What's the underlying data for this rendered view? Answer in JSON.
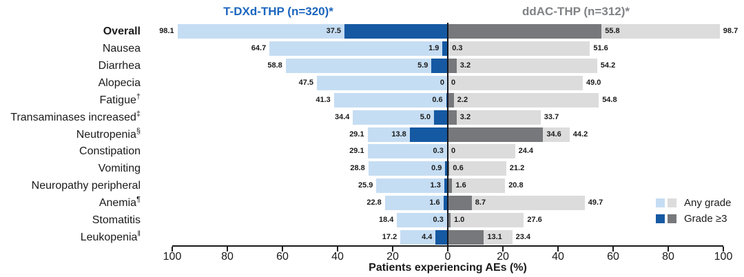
{
  "chart_data": {
    "type": "bar",
    "subtype": "diverging-butterfly",
    "xlabel": "Patients experiencing AEs (%)",
    "axis": {
      "tick_labels": [
        "100",
        "80",
        "60",
        "40",
        "20",
        "0",
        "20",
        "40",
        "60",
        "80",
        "100"
      ],
      "max_each_side": 100,
      "grid": false
    },
    "groups": {
      "left": {
        "title": "T-DXd-THP (n=320)*",
        "title_color": "#1b65be",
        "any_grade_color": "#c5ddf3",
        "grade3_color": "#1559a3"
      },
      "right": {
        "title": "ddAC-THP (n=312)*",
        "title_color": "#808285",
        "any_grade_color": "#dcdcdc",
        "grade3_color": "#77787b"
      }
    },
    "legend": {
      "position": "bottom-right",
      "items": [
        {
          "label": "Any grade"
        },
        {
          "label": "Grade ≥3"
        }
      ]
    },
    "rows": [
      {
        "label": "Overall",
        "bold": true,
        "left": {
          "any": 98.1,
          "any_label": "98.1",
          "g3": 37.5,
          "g3_label": "37.5"
        },
        "right": {
          "any": 98.7,
          "any_label": "98.7",
          "g3": 55.8,
          "g3_label": "55.8"
        }
      },
      {
        "label": "Nausea",
        "bold": false,
        "left": {
          "any": 64.7,
          "any_label": "64.7",
          "g3": 1.9,
          "g3_label": "1.9"
        },
        "right": {
          "any": 51.6,
          "any_label": "51.6",
          "g3": 0.3,
          "g3_label": "0.3"
        }
      },
      {
        "label": "Diarrhea",
        "bold": false,
        "left": {
          "any": 58.8,
          "any_label": "58.8",
          "g3": 5.9,
          "g3_label": "5.9"
        },
        "right": {
          "any": 54.2,
          "any_label": "54.2",
          "g3": 3.2,
          "g3_label": "3.2"
        }
      },
      {
        "label": "Alopecia",
        "bold": false,
        "left": {
          "any": 47.5,
          "any_label": "47.5",
          "g3": 0,
          "g3_label": "0"
        },
        "right": {
          "any": 49.0,
          "any_label": "49.0",
          "g3": 0,
          "g3_label": "0"
        }
      },
      {
        "label": "Fatigue†",
        "bold": false,
        "left": {
          "any": 41.3,
          "any_label": "41.3",
          "g3": 0.6,
          "g3_label": "0.6"
        },
        "right": {
          "any": 54.8,
          "any_label": "54.8",
          "g3": 2.2,
          "g3_label": "2.2"
        }
      },
      {
        "label": "Transaminases increased‡",
        "bold": false,
        "left": {
          "any": 34.4,
          "any_label": "34.4",
          "g3": 5.0,
          "g3_label": "5.0"
        },
        "right": {
          "any": 33.7,
          "any_label": "33.7",
          "g3": 3.2,
          "g3_label": "3.2"
        }
      },
      {
        "label": "Neutropenia§",
        "bold": false,
        "left": {
          "any": 29.1,
          "any_label": "29.1",
          "g3": 13.8,
          "g3_label": "13.8"
        },
        "right": {
          "any": 44.2,
          "any_label": "44.2",
          "g3": 34.6,
          "g3_label": "34.6"
        }
      },
      {
        "label": "Constipation",
        "bold": false,
        "left": {
          "any": 29.1,
          "any_label": "29.1",
          "g3": 0.3,
          "g3_label": "0.3"
        },
        "right": {
          "any": 24.4,
          "any_label": "24.4",
          "g3": 0,
          "g3_label": "0"
        }
      },
      {
        "label": "Vomiting",
        "bold": false,
        "left": {
          "any": 28.8,
          "any_label": "28.8",
          "g3": 0.9,
          "g3_label": "0.9"
        },
        "right": {
          "any": 21.2,
          "any_label": "21.2",
          "g3": 0.6,
          "g3_label": "0.6"
        }
      },
      {
        "label": "Neuropathy peripheral",
        "bold": false,
        "left": {
          "any": 25.9,
          "any_label": "25.9",
          "g3": 1.3,
          "g3_label": "1.3"
        },
        "right": {
          "any": 20.8,
          "any_label": "20.8",
          "g3": 1.6,
          "g3_label": "1.6"
        }
      },
      {
        "label": "Anemia¶",
        "bold": false,
        "left": {
          "any": 22.8,
          "any_label": "22.8",
          "g3": 1.6,
          "g3_label": "1.6"
        },
        "right": {
          "any": 49.7,
          "any_label": "49.7",
          "g3": 8.7,
          "g3_label": "8.7"
        }
      },
      {
        "label": "Stomatitis",
        "bold": false,
        "left": {
          "any": 18.4,
          "any_label": "18.4",
          "g3": 0.3,
          "g3_label": "0.3"
        },
        "right": {
          "any": 27.6,
          "any_label": "27.6",
          "g3": 1.0,
          "g3_label": "1.0"
        }
      },
      {
        "label": "Leukopenia‖",
        "bold": false,
        "left": {
          "any": 17.2,
          "any_label": "17.2",
          "g3": 4.4,
          "g3_label": "4.4"
        },
        "right": {
          "any": 23.4,
          "any_label": "23.4",
          "g3": 13.1,
          "g3_label": "13.1"
        }
      }
    ]
  }
}
